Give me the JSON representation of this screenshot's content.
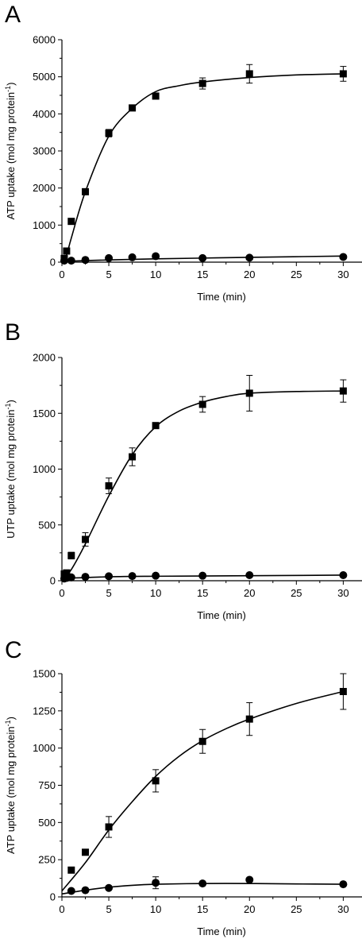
{
  "chart_data": [
    {
      "panel": "A",
      "type": "line",
      "xlabel": "Time (min)",
      "ylabel_main": "ATP uptake (mol mg protein",
      "ylabel_sup": "-1",
      "ylabel_close": ")",
      "xlim": [
        0,
        32
      ],
      "ylim": [
        0,
        6000
      ],
      "xticks": [
        0,
        5,
        10,
        15,
        20,
        25,
        30
      ],
      "yticks": [
        0,
        1000,
        2000,
        3000,
        4000,
        5000,
        6000
      ],
      "series": [
        {
          "marker": "square",
          "points": [
            {
              "x": 0.25,
              "y": 100,
              "err": 0
            },
            {
              "x": 0.5,
              "y": 300,
              "err": 0
            },
            {
              "x": 1,
              "y": 1100,
              "err": 50
            },
            {
              "x": 2.5,
              "y": 1900,
              "err": 50
            },
            {
              "x": 5,
              "y": 3480,
              "err": 100
            },
            {
              "x": 7.5,
              "y": 4160,
              "err": 60
            },
            {
              "x": 10,
              "y": 4480,
              "err": 80
            },
            {
              "x": 15,
              "y": 4820,
              "err": 150
            },
            {
              "x": 20,
              "y": 5080,
              "err": 250
            },
            {
              "x": 30,
              "y": 5080,
              "err": 200
            }
          ],
          "curve": [
            [
              0,
              0
            ],
            [
              0.5,
              200
            ],
            [
              1,
              650
            ],
            [
              2.5,
              1900
            ],
            [
              5,
              3400
            ],
            [
              7.5,
              4150
            ],
            [
              10,
              4600
            ],
            [
              12.5,
              4760
            ],
            [
              15,
              4860
            ],
            [
              20,
              4980
            ],
            [
              25,
              5050
            ],
            [
              30,
              5080
            ]
          ]
        },
        {
          "marker": "circle",
          "points": [
            {
              "x": 0.25,
              "y": 40,
              "err": 0
            },
            {
              "x": 1,
              "y": 40,
              "err": 0
            },
            {
              "x": 2.5,
              "y": 60,
              "err": 0
            },
            {
              "x": 5,
              "y": 110,
              "err": 30
            },
            {
              "x": 7.5,
              "y": 130,
              "err": 40
            },
            {
              "x": 10,
              "y": 160,
              "err": 60
            },
            {
              "x": 15,
              "y": 110,
              "err": 40
            },
            {
              "x": 20,
              "y": 120,
              "err": 30
            },
            {
              "x": 30,
              "y": 140,
              "err": 40
            }
          ],
          "curve": [
            [
              0,
              20
            ],
            [
              5,
              60
            ],
            [
              10,
              90
            ],
            [
              15,
              110
            ],
            [
              20,
              130
            ],
            [
              30,
              165
            ]
          ]
        }
      ]
    },
    {
      "panel": "B",
      "type": "line",
      "xlabel": "Time (min)",
      "ylabel_main": "UTP uptake (mol mg protein",
      "ylabel_sup": "-1",
      "ylabel_close": ")",
      "xlim": [
        0,
        32
      ],
      "ylim": [
        0,
        2000
      ],
      "xticks": [
        0,
        5,
        10,
        15,
        20,
        25,
        30
      ],
      "yticks": [
        0,
        500,
        1000,
        1500,
        2000
      ],
      "series": [
        {
          "marker": "square",
          "points": [
            {
              "x": 0.25,
              "y": 60,
              "err": 0
            },
            {
              "x": 0.5,
              "y": 70,
              "err": 0
            },
            {
              "x": 1,
              "y": 225,
              "err": 30
            },
            {
              "x": 2.5,
              "y": 370,
              "err": 60
            },
            {
              "x": 5,
              "y": 850,
              "err": 70
            },
            {
              "x": 7.5,
              "y": 1110,
              "err": 80
            },
            {
              "x": 10,
              "y": 1390,
              "err": 20
            },
            {
              "x": 15,
              "y": 1580,
              "err": 70
            },
            {
              "x": 20,
              "y": 1680,
              "err": 160
            },
            {
              "x": 30,
              "y": 1700,
              "err": 100
            }
          ],
          "curve": [
            [
              0,
              0
            ],
            [
              1,
              100
            ],
            [
              2.5,
              330
            ],
            [
              5,
              760
            ],
            [
              7.5,
              1130
            ],
            [
              10,
              1380
            ],
            [
              12.5,
              1520
            ],
            [
              15,
              1600
            ],
            [
              17.5,
              1650
            ],
            [
              20,
              1680
            ],
            [
              25,
              1695
            ],
            [
              30,
              1700
            ]
          ]
        },
        {
          "marker": "circle",
          "points": [
            {
              "x": 0.25,
              "y": 20,
              "err": 0
            },
            {
              "x": 0.5,
              "y": 25,
              "err": 0
            },
            {
              "x": 1,
              "y": 30,
              "err": 0
            },
            {
              "x": 2.5,
              "y": 35,
              "err": 0
            },
            {
              "x": 5,
              "y": 40,
              "err": 0
            },
            {
              "x": 7.5,
              "y": 42,
              "err": 0
            },
            {
              "x": 10,
              "y": 45,
              "err": 0
            },
            {
              "x": 15,
              "y": 45,
              "err": 0
            },
            {
              "x": 20,
              "y": 50,
              "err": 0
            },
            {
              "x": 30,
              "y": 50,
              "err": 0
            }
          ],
          "curve": [
            [
              0,
              20
            ],
            [
              5,
              35
            ],
            [
              10,
              40
            ],
            [
              20,
              45
            ],
            [
              30,
              50
            ]
          ]
        }
      ]
    },
    {
      "panel": "C",
      "type": "line",
      "xlabel": "Time (min)",
      "ylabel_main": "ATP uptake (mol mg protein",
      "ylabel_sup": "-1",
      "ylabel_close": ")",
      "xlim": [
        0,
        32
      ],
      "ylim": [
        0,
        1500
      ],
      "xticks": [
        0,
        5,
        10,
        15,
        20,
        25,
        30
      ],
      "yticks": [
        0,
        250,
        500,
        750,
        1000,
        1250,
        1500
      ],
      "series": [
        {
          "marker": "square",
          "points": [
            {
              "x": 1,
              "y": 180,
              "err": 0
            },
            {
              "x": 2.5,
              "y": 300,
              "err": 0
            },
            {
              "x": 5,
              "y": 470,
              "err": 70
            },
            {
              "x": 10,
              "y": 780,
              "err": 75
            },
            {
              "x": 15,
              "y": 1045,
              "err": 80
            },
            {
              "x": 20,
              "y": 1195,
              "err": 110
            },
            {
              "x": 30,
              "y": 1380,
              "err": 120
            }
          ],
          "curve": [
            [
              0,
              40
            ],
            [
              2.5,
              230
            ],
            [
              5,
              450
            ],
            [
              7.5,
              640
            ],
            [
              10,
              810
            ],
            [
              12.5,
              945
            ],
            [
              15,
              1050
            ],
            [
              17.5,
              1130
            ],
            [
              20,
              1195
            ],
            [
              25,
              1300
            ],
            [
              30,
              1380
            ]
          ]
        },
        {
          "marker": "circle",
          "points": [
            {
              "x": 1,
              "y": 40,
              "err": 0
            },
            {
              "x": 2.5,
              "y": 45,
              "err": 0
            },
            {
              "x": 5,
              "y": 60,
              "err": 0
            },
            {
              "x": 10,
              "y": 95,
              "err": 40
            },
            {
              "x": 15,
              "y": 90,
              "err": 0
            },
            {
              "x": 20,
              "y": 115,
              "err": 0
            },
            {
              "x": 30,
              "y": 85,
              "err": 0
            }
          ],
          "curve": [
            [
              0,
              20
            ],
            [
              2.5,
              45
            ],
            [
              5,
              65
            ],
            [
              7.5,
              78
            ],
            [
              10,
              85
            ],
            [
              15,
              90
            ],
            [
              20,
              90
            ],
            [
              25,
              87
            ],
            [
              30,
              85
            ]
          ]
        }
      ]
    }
  ]
}
